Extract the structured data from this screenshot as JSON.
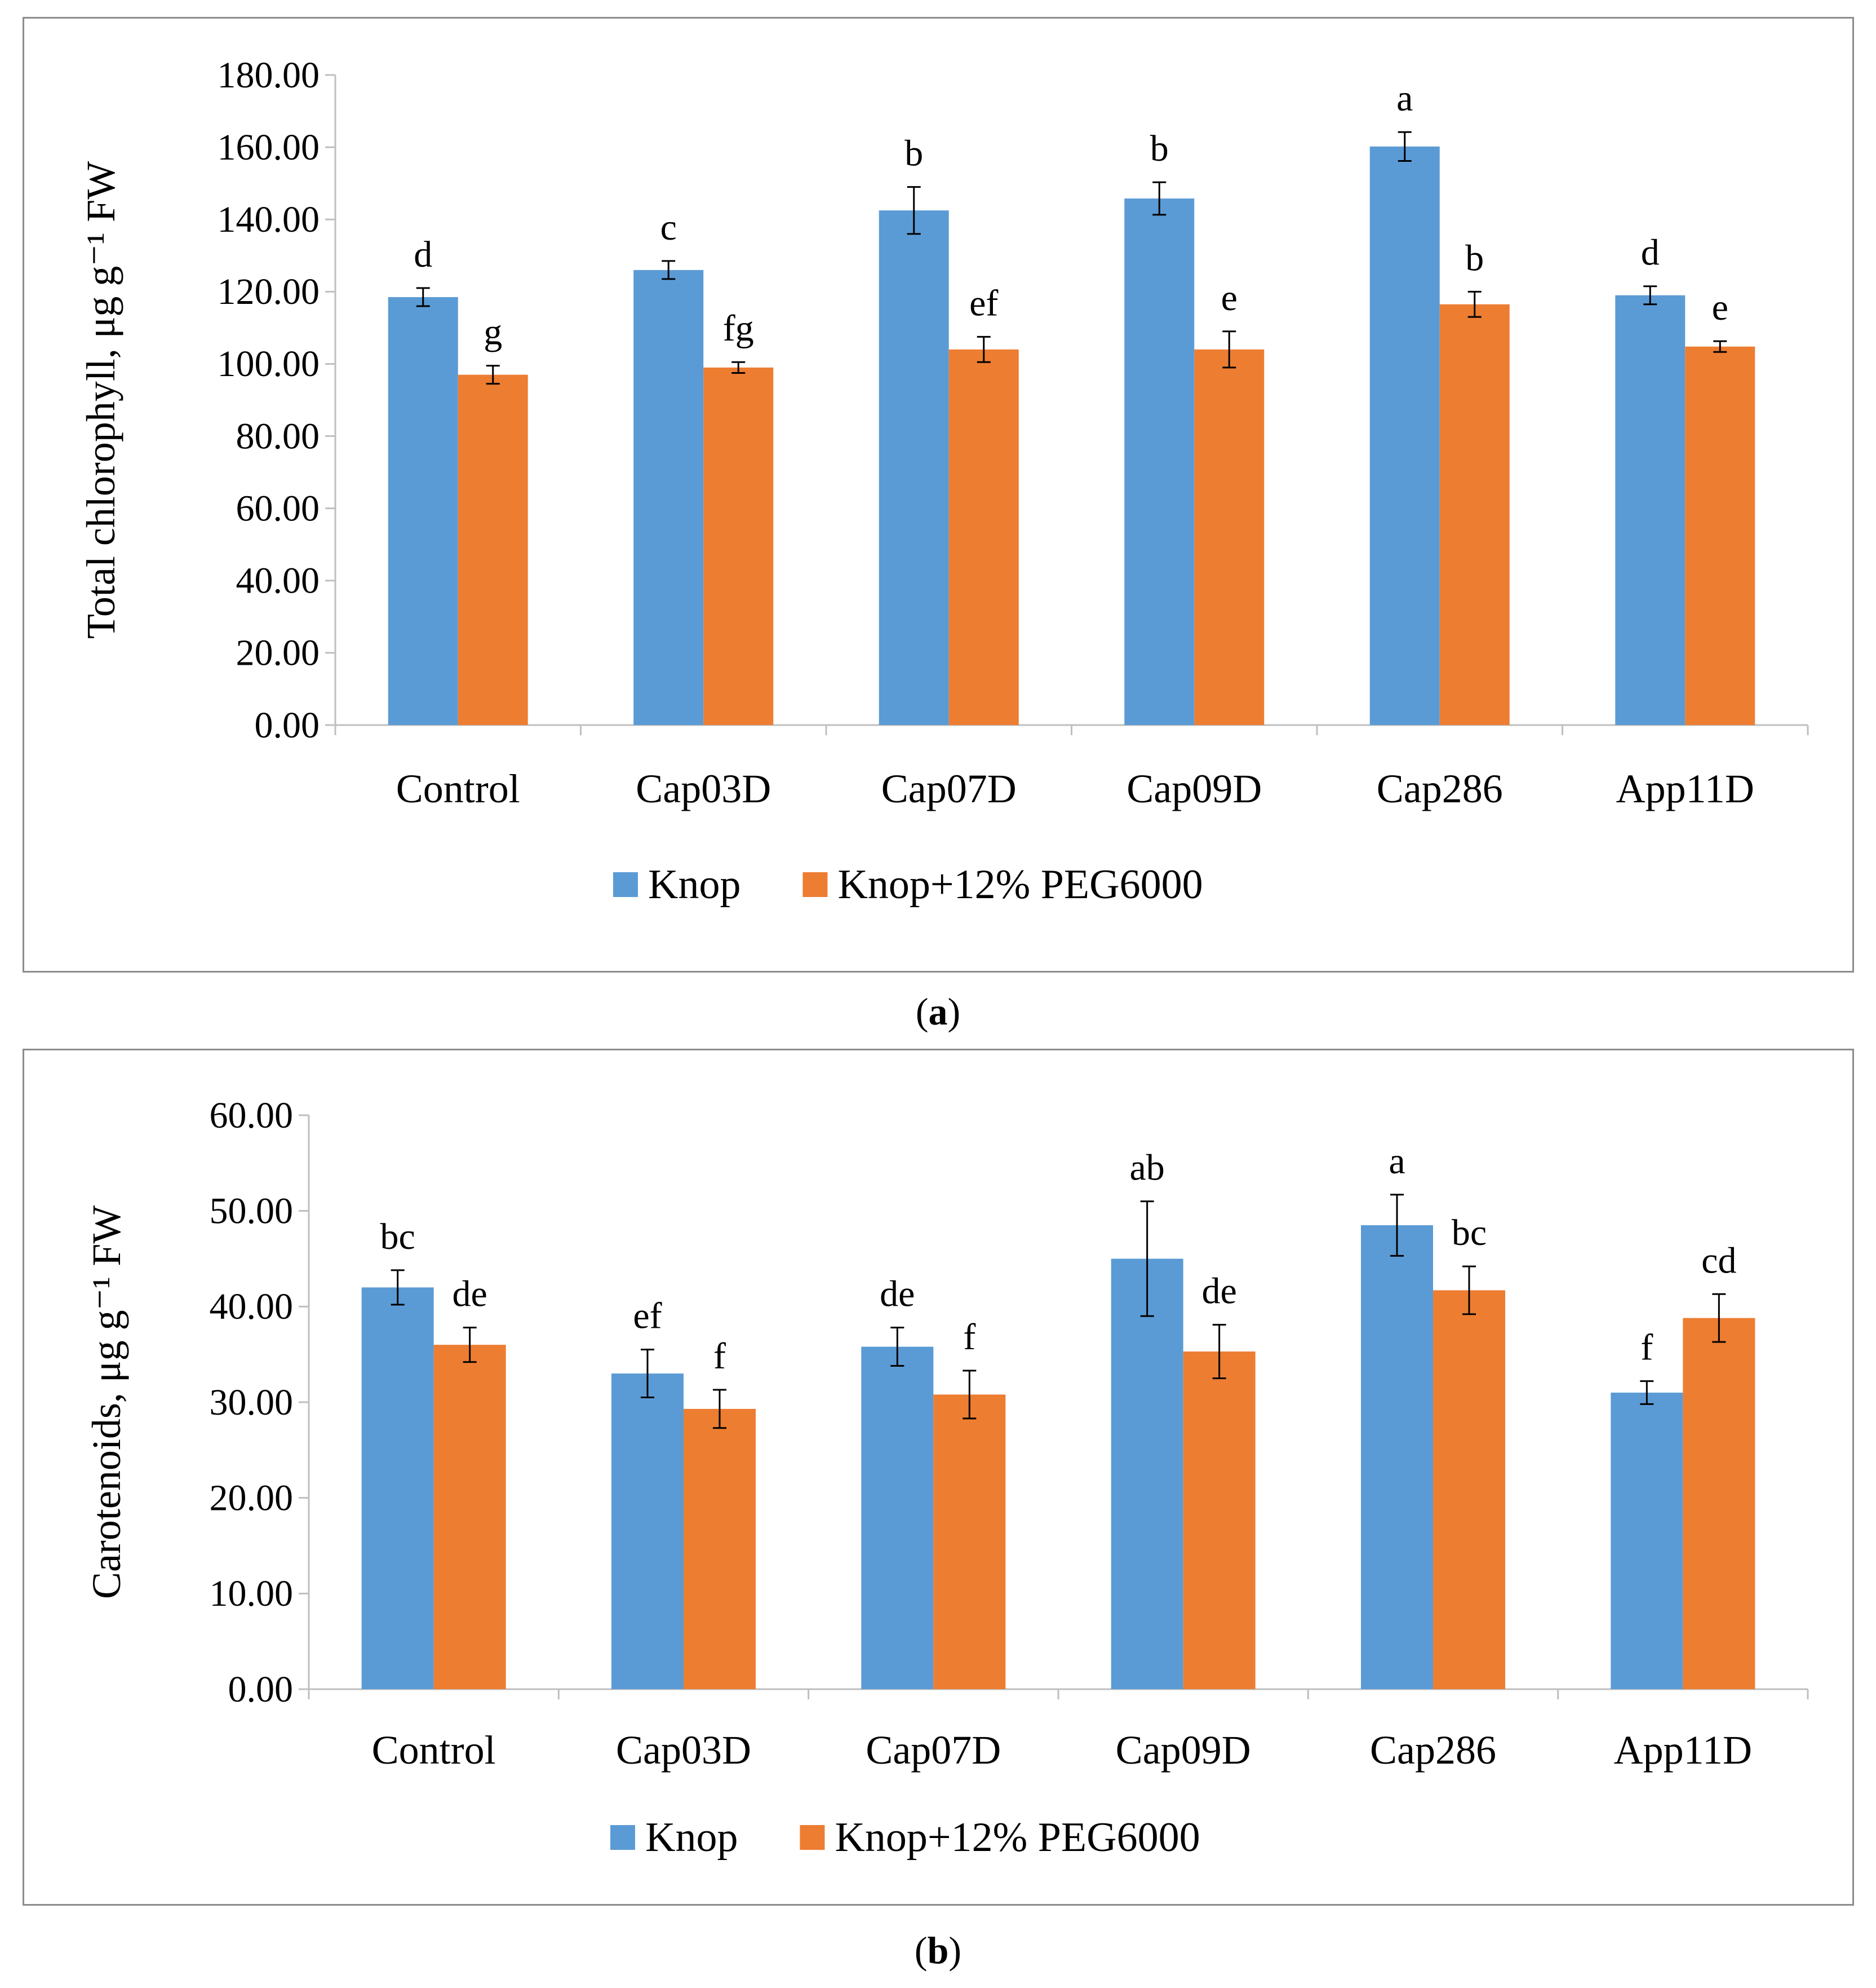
{
  "colors": {
    "knop": "#5b9bd5",
    "peg": "#ed7d31",
    "axis": "#bfbfbf"
  },
  "chart_data": [
    {
      "type": "bar",
      "panel_label": "a",
      "ylabel": "Total chlorophyll, μg g⁻¹ FW",
      "ylim": [
        0,
        180
      ],
      "ytick_step": 20,
      "ytick_labels": [
        "0.00",
        "20.00",
        "40.00",
        "60.00",
        "80.00",
        "100.00",
        "120.00",
        "140.00",
        "160.00",
        "180.00"
      ],
      "categories": [
        "Control",
        "Cap03D",
        "Cap07D",
        "Cap09D",
        "Cap286",
        "App11D"
      ],
      "legend_position": "bottom",
      "series": [
        {
          "name": "Knop",
          "values": [
            118.5,
            126.0,
            142.5,
            145.8,
            160.2,
            119.0
          ],
          "errors": [
            2.5,
            2.5,
            6.5,
            4.5,
            4.0,
            2.5
          ],
          "letters": [
            "d",
            "c",
            "b",
            "b",
            "a",
            "d"
          ]
        },
        {
          "name": "Knop+12% PEG6000",
          "values": [
            97.0,
            99.0,
            104.0,
            104.0,
            116.5,
            104.8
          ],
          "errors": [
            2.5,
            1.5,
            3.5,
            5.0,
            3.5,
            1.5
          ],
          "letters": [
            "g",
            "fg",
            "ef",
            "e",
            "b",
            "e"
          ]
        }
      ]
    },
    {
      "type": "bar",
      "panel_label": "b",
      "ylabel": "Carotenoids, μg g⁻¹ FW",
      "ylim": [
        0,
        60
      ],
      "ytick_step": 10,
      "ytick_labels": [
        "0.00",
        "10.00",
        "20.00",
        "30.00",
        "40.00",
        "50.00",
        "60.00"
      ],
      "categories": [
        "Control",
        "Cap03D",
        "Cap07D",
        "Cap09D",
        "Cap286",
        "App11D"
      ],
      "legend_position": "bottom",
      "series": [
        {
          "name": "Knop",
          "values": [
            42.0,
            33.0,
            35.8,
            45.0,
            48.5,
            31.0
          ],
          "errors": [
            1.8,
            2.5,
            2.0,
            6.0,
            3.2,
            1.2
          ],
          "letters": [
            "bc",
            "ef",
            "de",
            "ab",
            "a",
            "f"
          ]
        },
        {
          "name": "Knop+12% PEG6000",
          "values": [
            36.0,
            29.3,
            30.8,
            35.3,
            41.7,
            38.8
          ],
          "errors": [
            1.8,
            2.0,
            2.5,
            2.8,
            2.5,
            2.5
          ],
          "letters": [
            "de",
            "f",
            "f",
            "de",
            "bc",
            "cd"
          ]
        }
      ]
    }
  ]
}
